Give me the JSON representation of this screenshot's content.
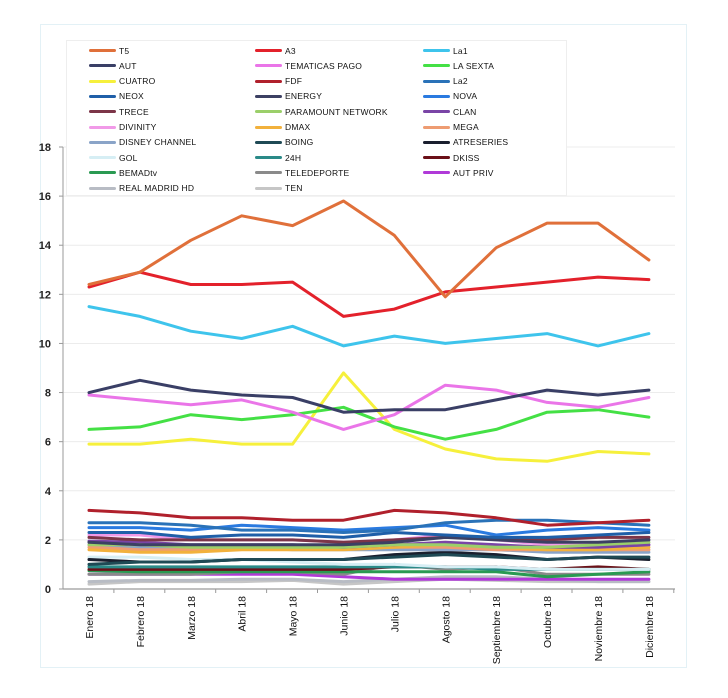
{
  "chart_data": {
    "type": "line",
    "title": "",
    "xlabel": "",
    "ylabel": "",
    "ylim": [
      0,
      18
    ],
    "yticks": [
      "0",
      "2",
      "4",
      "6",
      "8",
      "10",
      "12",
      "14",
      "16",
      "18"
    ],
    "grid": true,
    "legend_position": "top",
    "categories": [
      "Enero 18",
      "Febrero 18",
      "Marzo 18",
      "Abril 18",
      "Mayo 18",
      "Junio 18",
      "Julio 18",
      "Agosto 18",
      "Septiembre 18",
      "Octubre 18",
      "Noviembre 18",
      "Diciembre 18"
    ],
    "series": [
      {
        "name": "T5",
        "color": "#e0703a",
        "values": [
          12.4,
          12.9,
          14.2,
          15.2,
          14.8,
          15.8,
          14.4,
          11.9,
          13.9,
          14.9,
          14.9,
          13.4
        ]
      },
      {
        "name": "A3",
        "color": "#e3212b",
        "values": [
          12.3,
          12.9,
          12.4,
          12.4,
          12.5,
          11.1,
          11.4,
          12.1,
          12.3,
          12.5,
          12.7,
          12.6
        ]
      },
      {
        "name": "La1",
        "color": "#3ec4ec",
        "values": [
          11.5,
          11.1,
          10.5,
          10.2,
          10.7,
          9.9,
          10.3,
          10.0,
          10.2,
          10.4,
          9.9,
          10.4
        ]
      },
      {
        "name": "AUT",
        "color": "#3a3f66",
        "values": [
          8.0,
          8.5,
          8.1,
          7.9,
          7.8,
          7.2,
          7.3,
          7.3,
          7.7,
          8.1,
          7.9,
          8.1
        ]
      },
      {
        "name": "TEMATICAS PAGO",
        "color": "#ea75e8",
        "values": [
          7.9,
          7.7,
          7.5,
          7.7,
          7.2,
          6.5,
          7.1,
          8.3,
          8.1,
          7.6,
          7.4,
          7.8
        ]
      },
      {
        "name": "LA SEXTA",
        "color": "#44e045",
        "values": [
          6.5,
          6.6,
          7.1,
          6.9,
          7.1,
          7.4,
          6.6,
          6.1,
          6.5,
          7.2,
          7.3,
          7.0
        ]
      },
      {
        "name": "CUATRO",
        "color": "#f6f03c",
        "values": [
          5.9,
          5.9,
          6.1,
          5.9,
          5.9,
          8.8,
          6.5,
          5.7,
          5.3,
          5.2,
          5.6,
          5.5
        ]
      },
      {
        "name": "FDF",
        "color": "#b0202c",
        "values": [
          3.2,
          3.1,
          2.9,
          2.9,
          2.8,
          2.8,
          3.2,
          3.1,
          2.9,
          2.6,
          2.7,
          2.8
        ]
      },
      {
        "name": "La2",
        "color": "#2a72b8",
        "values": [
          2.7,
          2.7,
          2.6,
          2.4,
          2.4,
          2.3,
          2.4,
          2.7,
          2.8,
          2.8,
          2.7,
          2.6
        ]
      },
      {
        "name": "NEOX",
        "color": "#1f5fa8",
        "values": [
          2.3,
          2.3,
          2.1,
          2.2,
          2.2,
          2.1,
          2.3,
          2.2,
          2.1,
          2.1,
          2.2,
          2.3
        ]
      },
      {
        "name": "ENERGY",
        "color": "#3c4063",
        "values": [
          1.9,
          1.8,
          1.8,
          1.8,
          1.8,
          1.8,
          1.9,
          2.1,
          2.0,
          1.9,
          1.9,
          2.0
        ]
      },
      {
        "name": "NOVA",
        "color": "#2a7ae0",
        "values": [
          2.5,
          2.5,
          2.4,
          2.6,
          2.5,
          2.4,
          2.5,
          2.6,
          2.2,
          2.4,
          2.5,
          2.4
        ]
      },
      {
        "name": "TRECE",
        "color": "#7c3548",
        "values": [
          2.1,
          2.0,
          2.0,
          2.0,
          2.0,
          1.9,
          2.0,
          2.1,
          2.1,
          2.0,
          2.1,
          2.1
        ]
      },
      {
        "name": "PARAMOUNT NETWORK",
        "color": "#9bcf6a",
        "values": [
          1.8,
          1.8,
          1.7,
          1.7,
          1.7,
          1.7,
          1.8,
          1.8,
          1.7,
          1.7,
          1.8,
          1.9
        ]
      },
      {
        "name": "CLAN",
        "color": "#7a45a6",
        "values": [
          1.95,
          1.9,
          1.8,
          1.8,
          1.8,
          1.7,
          1.8,
          1.9,
          1.8,
          1.7,
          1.7,
          1.8
        ]
      },
      {
        "name": "DIVINITY",
        "color": "#f19ae8",
        "values": [
          2.2,
          2.2,
          2.0,
          2.0,
          2.0,
          1.9,
          2.0,
          2.2,
          2.0,
          1.8,
          1.8,
          1.8
        ]
      },
      {
        "name": "DMAX",
        "color": "#f2b13c",
        "values": [
          1.6,
          1.5,
          1.5,
          1.6,
          1.6,
          1.6,
          1.7,
          1.8,
          1.7,
          1.6,
          1.6,
          1.7
        ]
      },
      {
        "name": "MEGA",
        "color": "#ee9c72",
        "values": [
          1.7,
          1.6,
          1.6,
          1.7,
          1.7,
          1.7,
          1.7,
          1.7,
          1.6,
          1.6,
          1.6,
          1.6
        ]
      },
      {
        "name": "DISNEY CHANNEL",
        "color": "#8aa4c8",
        "values": [
          1.8,
          1.7,
          1.7,
          1.7,
          1.6,
          1.6,
          1.6,
          1.6,
          1.6,
          1.5,
          1.5,
          1.5
        ]
      },
      {
        "name": "BOING",
        "color": "#1f4a55",
        "values": [
          1.0,
          1.1,
          1.1,
          1.2,
          1.2,
          1.2,
          1.3,
          1.4,
          1.3,
          1.2,
          1.3,
          1.3
        ]
      },
      {
        "name": "ATRESERIES",
        "color": "#1a1f2e",
        "values": [
          1.2,
          1.1,
          1.1,
          1.2,
          1.2,
          1.2,
          1.4,
          1.5,
          1.4,
          1.2,
          1.3,
          1.2
        ]
      },
      {
        "name": "GOL",
        "color": "#d6eef4",
        "values": [
          1.3,
          1.3,
          1.2,
          1.2,
          1.1,
          1.0,
          1.0,
          0.9,
          0.9,
          0.8,
          0.8,
          0.8
        ]
      },
      {
        "name": "24H",
        "color": "#2a8a88",
        "values": [
          0.9,
          0.9,
          0.9,
          0.9,
          0.9,
          0.9,
          0.9,
          0.9,
          0.8,
          0.8,
          0.8,
          0.8
        ]
      },
      {
        "name": "DKISS",
        "color": "#6b1018",
        "values": [
          0.8,
          0.8,
          0.8,
          0.8,
          0.8,
          0.8,
          0.9,
          0.9,
          0.9,
          0.8,
          0.9,
          0.8
        ]
      },
      {
        "name": "BEMADtv",
        "color": "#2a9a52",
        "values": [
          0.75,
          0.7,
          0.7,
          0.7,
          0.7,
          0.7,
          0.7,
          0.7,
          0.7,
          0.5,
          0.6,
          0.7
        ]
      },
      {
        "name": "TELEDEPORTE",
        "color": "#8a8a8a",
        "values": [
          0.6,
          0.6,
          0.6,
          0.7,
          0.7,
          0.6,
          1.0,
          0.8,
          0.9,
          0.6,
          0.6,
          0.6
        ]
      },
      {
        "name": "AUT PRIV",
        "color": "#b03ad8",
        "values": [
          0.6,
          0.6,
          0.6,
          0.6,
          0.6,
          0.5,
          0.4,
          0.4,
          0.4,
          0.4,
          0.4,
          0.4
        ]
      },
      {
        "name": "REAL MADRID HD",
        "color": "#b8bcc4",
        "values": [
          0.3,
          0.35,
          0.35,
          0.4,
          0.4,
          0.3,
          0.4,
          0.5,
          0.5,
          0.4,
          0.3,
          0.3
        ]
      },
      {
        "name": "TEN",
        "color": "#c6c6c6",
        "values": [
          0.2,
          0.3,
          0.3,
          0.3,
          0.35,
          0.2,
          0.3,
          0.4,
          0.35,
          0.3,
          0.3,
          0.3
        ]
      }
    ],
    "legend": [
      [
        "T5",
        "A3",
        "La1"
      ],
      [
        "AUT",
        "TEMATICAS PAGO",
        "LA SEXTA"
      ],
      [
        "CUATRO",
        "FDF",
        "La2"
      ],
      [
        "NEOX",
        "ENERGY",
        "NOVA"
      ],
      [
        "TRECE",
        "PARAMOUNT NETWORK",
        "CLAN"
      ],
      [
        "DIVINITY",
        "DMAX",
        "MEGA"
      ],
      [
        "DISNEY CHANNEL",
        "BOING",
        "ATRESERIES"
      ],
      [
        "GOL",
        "24H",
        "DKISS"
      ],
      [
        "BEMADtv",
        "TELEDEPORTE",
        "AUT PRIV"
      ],
      [
        "REAL MADRID HD",
        "TEN"
      ]
    ]
  }
}
